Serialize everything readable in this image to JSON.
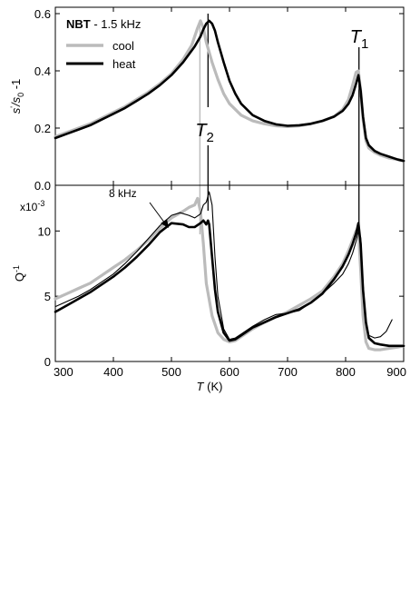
{
  "chart_data": [
    {
      "type": "line",
      "panel": "top",
      "ylabel": "s'/s0 -1",
      "xlim": [
        300,
        900
      ],
      "ylim": [
        0.0,
        0.6
      ],
      "yticks": [
        0.0,
        0.2,
        0.4,
        0.6
      ],
      "ytick_labels": [
        "0.0",
        "0.2",
        "0.4",
        "0.6"
      ],
      "legend_title": "NBT - 1.5 kHz",
      "legend_position": "top-left",
      "markers": [
        {
          "label": "T",
          "sub": "1",
          "x": 823
        },
        {
          "label": "T",
          "sub": "2",
          "x": 563
        }
      ],
      "series": [
        {
          "name": "cool",
          "color": "#bbbbbb",
          "width": 3.2,
          "x": [
            300,
            320,
            340,
            360,
            380,
            400,
            420,
            440,
            460,
            480,
            500,
            520,
            535,
            545,
            550,
            555,
            560,
            570,
            580,
            590,
            600,
            620,
            640,
            660,
            680,
            700,
            720,
            740,
            760,
            780,
            795,
            805,
            812,
            818,
            822,
            826,
            830,
            835,
            840,
            850,
            860,
            875,
            890,
            900
          ],
          "y": [
            0.17,
            0.185,
            0.2,
            0.215,
            0.235,
            0.255,
            0.275,
            0.3,
            0.325,
            0.355,
            0.39,
            0.44,
            0.49,
            0.55,
            0.575,
            0.55,
            0.5,
            0.43,
            0.37,
            0.32,
            0.285,
            0.245,
            0.225,
            0.215,
            0.208,
            0.205,
            0.208,
            0.215,
            0.225,
            0.24,
            0.265,
            0.3,
            0.35,
            0.395,
            0.4,
            0.33,
            0.23,
            0.155,
            0.13,
            0.115,
            0.105,
            0.095,
            0.09,
            0.085
          ]
        },
        {
          "name": "heat",
          "color": "#000000",
          "width": 2.6,
          "x": [
            300,
            320,
            340,
            360,
            380,
            400,
            420,
            440,
            460,
            480,
            500,
            520,
            540,
            550,
            555,
            560,
            565,
            570,
            575,
            580,
            590,
            600,
            610,
            620,
            640,
            660,
            680,
            700,
            720,
            740,
            760,
            780,
            795,
            805,
            812,
            818,
            822,
            826,
            830,
            835,
            840,
            850,
            860,
            875,
            890,
            900
          ],
          "y": [
            0.165,
            0.18,
            0.195,
            0.21,
            0.23,
            0.25,
            0.27,
            0.295,
            0.32,
            0.35,
            0.385,
            0.43,
            0.485,
            0.52,
            0.545,
            0.565,
            0.575,
            0.565,
            0.54,
            0.5,
            0.43,
            0.365,
            0.32,
            0.285,
            0.245,
            0.225,
            0.213,
            0.208,
            0.21,
            0.215,
            0.225,
            0.24,
            0.26,
            0.285,
            0.315,
            0.355,
            0.385,
            0.33,
            0.24,
            0.165,
            0.14,
            0.12,
            0.11,
            0.1,
            0.09,
            0.085
          ]
        }
      ]
    },
    {
      "type": "line",
      "panel": "bottom",
      "xlabel_italic": "T",
      "xlabel_rest": " (K)",
      "ylabel": "Q-1",
      "y_multiplier": "x10-3",
      "xlim": [
        300,
        900
      ],
      "ylim": [
        0,
        13.5
      ],
      "xticks": [
        300,
        400,
        500,
        600,
        700,
        800,
        900
      ],
      "xtick_labels": [
        "300",
        "400",
        "500",
        "600",
        "700",
        "800",
        "900"
      ],
      "yticks": [
        0,
        5,
        10
      ],
      "ytick_labels": [
        "0",
        "5",
        "10"
      ],
      "annotation": "8 kHz",
      "series": [
        {
          "name": "cool",
          "color": "#bbbbbb",
          "width": 3.2,
          "x": [
            300,
            320,
            340,
            360,
            380,
            400,
            420,
            440,
            460,
            480,
            500,
            520,
            530,
            540,
            545,
            550,
            555,
            560,
            570,
            580,
            590,
            600,
            610,
            620,
            640,
            660,
            680,
            700,
            720,
            740,
            760,
            780,
            795,
            805,
            812,
            818,
            822,
            826,
            830,
            835,
            840,
            850,
            860,
            875,
            890,
            900
          ],
          "y": [
            4.8,
            5.2,
            5.6,
            6.0,
            6.6,
            7.2,
            7.8,
            8.5,
            9.3,
            10.2,
            11.0,
            11.5,
            11.8,
            12.0,
            12.5,
            11.5,
            9.0,
            6.0,
            3.5,
            2.2,
            1.7,
            1.5,
            1.6,
            1.9,
            2.5,
            3.0,
            3.4,
            3.8,
            4.3,
            4.8,
            5.4,
            6.5,
            7.5,
            8.5,
            9.3,
            10.0,
            10.0,
            7.0,
            3.5,
            1.5,
            1.0,
            0.9,
            0.9,
            1.0,
            1.1,
            1.2
          ]
        },
        {
          "name": "heat",
          "color": "#000000",
          "width": 2.6,
          "x": [
            300,
            320,
            340,
            360,
            380,
            400,
            420,
            440,
            460,
            480,
            500,
            520,
            530,
            540,
            550,
            555,
            560,
            563,
            565,
            570,
            575,
            580,
            590,
            600,
            610,
            620,
            640,
            660,
            680,
            700,
            720,
            740,
            760,
            780,
            795,
            805,
            812,
            818,
            822,
            826,
            830,
            835,
            840,
            850,
            860,
            875,
            890,
            900
          ],
          "y": [
            3.8,
            4.3,
            4.8,
            5.3,
            5.9,
            6.5,
            7.2,
            8.0,
            8.9,
            9.9,
            10.6,
            10.5,
            10.3,
            10.3,
            10.6,
            10.8,
            10.5,
            10.8,
            10.5,
            8.0,
            5.5,
            3.8,
            2.2,
            1.6,
            1.7,
            2.0,
            2.6,
            3.0,
            3.4,
            3.7,
            4.0,
            4.5,
            5.2,
            6.3,
            7.3,
            8.2,
            9.0,
            9.8,
            10.6,
            9.0,
            5.5,
            3.0,
            1.8,
            1.4,
            1.3,
            1.2,
            1.2,
            1.2
          ]
        },
        {
          "name": "8 kHz",
          "color": "#000000",
          "width": 1.1,
          "x": [
            300,
            320,
            340,
            360,
            380,
            400,
            420,
            440,
            460,
            480,
            500,
            515,
            530,
            540,
            550,
            555,
            560,
            565,
            570,
            575,
            580,
            590,
            600,
            610,
            620,
            640,
            660,
            680,
            700,
            720,
            740,
            760,
            780,
            795,
            805,
            812,
            818,
            822,
            826,
            830,
            835,
            840,
            850,
            860,
            870,
            880
          ],
          "y": [
            4.2,
            4.6,
            5.0,
            5.5,
            6.1,
            6.7,
            7.5,
            8.4,
            9.4,
            10.4,
            11.2,
            11.4,
            11.2,
            11.0,
            11.3,
            12.0,
            12.2,
            13.0,
            12.0,
            8.0,
            5.0,
            2.5,
            1.7,
            1.8,
            2.1,
            2.7,
            3.2,
            3.6,
            3.7,
            3.9,
            4.5,
            5.2,
            6.0,
            6.7,
            7.5,
            8.3,
            9.2,
            10.0,
            9.5,
            6.0,
            3.0,
            2.0,
            1.8,
            1.9,
            2.3,
            3.2
          ]
        }
      ]
    }
  ]
}
